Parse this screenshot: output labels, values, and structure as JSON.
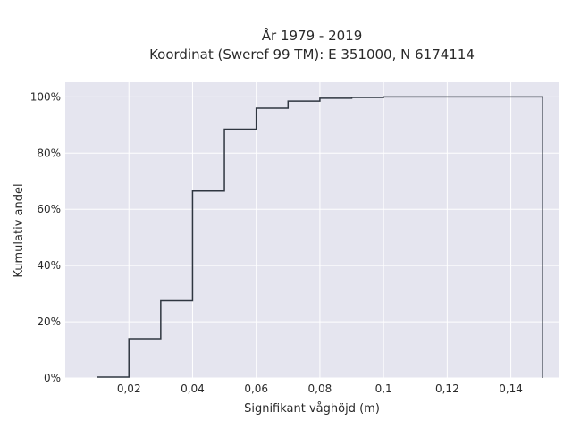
{
  "chart_data": {
    "type": "line",
    "title_lines": [
      "År 1979 - 2019",
      "Koordinat (Sweref 99 TM): E 351000, N 6174114"
    ],
    "xlabel": "Signifikant våghöjd (m)",
    "ylabel": "Kumulativ andel",
    "xlim": [
      0.0,
      0.155
    ],
    "ylim": [
      0,
      100
    ],
    "x_ticks": [
      0.02,
      0.04,
      0.06,
      0.08,
      0.1,
      0.12,
      0.14
    ],
    "x_tick_labels": [
      "0,02",
      "0,04",
      "0,06",
      "0,08",
      "0,1",
      "0,12",
      "0,14"
    ],
    "y_ticks": [
      0,
      20,
      40,
      60,
      80,
      100
    ],
    "y_tick_labels": [
      "0%",
      "20%",
      "40%",
      "60%",
      "80%",
      "100%"
    ],
    "grid": true,
    "step_line": {
      "x": [
        0.01,
        0.02,
        0.03,
        0.04,
        0.05,
        0.06,
        0.07,
        0.08,
        0.09,
        0.1,
        0.13,
        0.15
      ],
      "y": [
        0.3,
        14,
        27.5,
        66.5,
        88.5,
        96,
        98.5,
        99.5,
        99.8,
        100,
        100,
        100
      ],
      "drop_to_zero_at_end": true
    },
    "colors": {
      "line": "#2f3640",
      "plot_background": "#e5e5ef",
      "grid": "#ffffff"
    }
  }
}
